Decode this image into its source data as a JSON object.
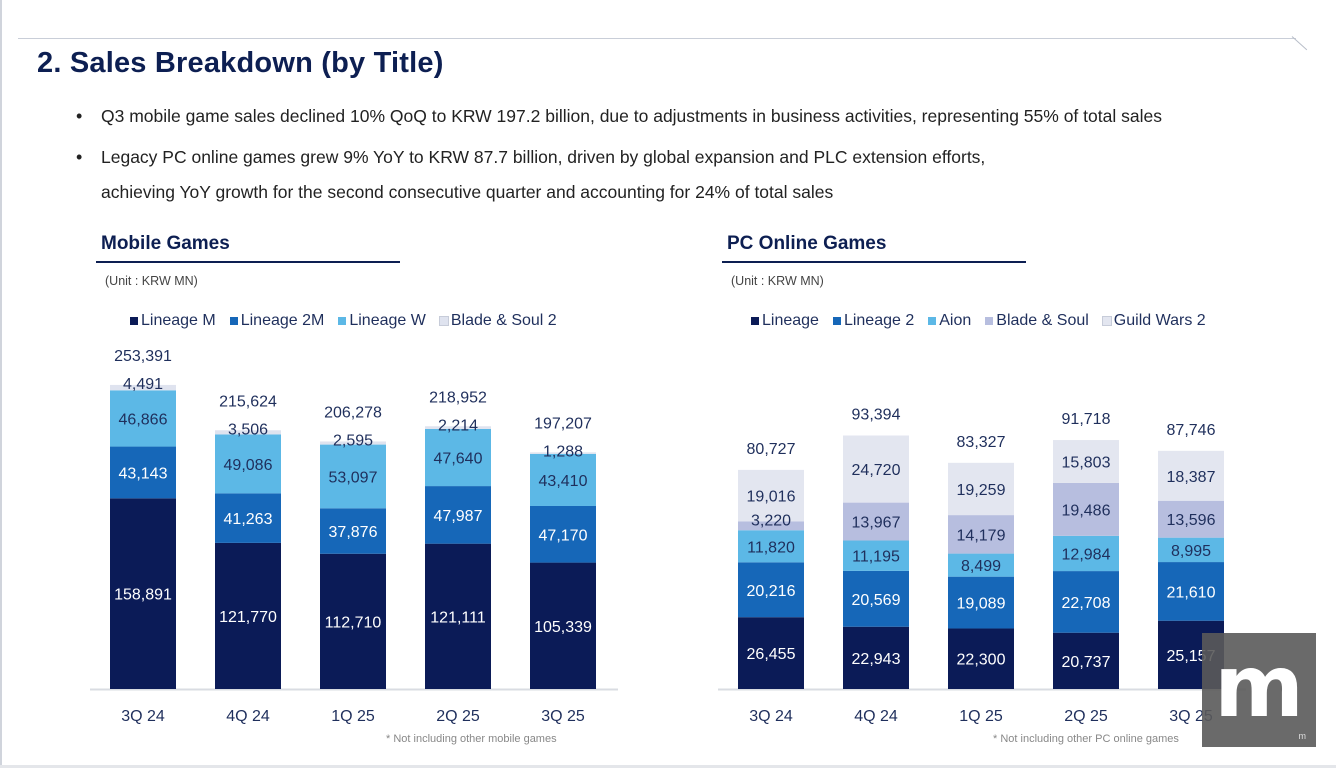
{
  "title": "2. Sales Breakdown (by Title)",
  "bullets": [
    "Q3 mobile game sales declined 10% QoQ to KRW 197.2 billion, due to adjustments in business activities, representing 55% of total sales",
    "Legacy PC online games grew 9% YoY to KRW 87.7 billion, driven by global expansion and PLC extension efforts,",
    "achieving YoY growth for the second consecutive quarter and accounting for 24% of total sales"
  ],
  "bullet_marker": "•",
  "watermark": {
    "letter": "m",
    "small": "m"
  },
  "chart_data": [
    {
      "type": "bar",
      "stacked": true,
      "title": "Mobile Games",
      "unit": "(Unit : KRW MN)",
      "categories": [
        "3Q 24",
        "4Q 24",
        "1Q 25",
        "2Q 25",
        "3Q 25"
      ],
      "series": [
        {
          "name": "Lineage M",
          "color": "#0b1b57",
          "values": [
            158891,
            121770,
            112710,
            121111,
            105339
          ]
        },
        {
          "name": "Lineage 2M",
          "color": "#1667b8",
          "values": [
            43143,
            41263,
            37876,
            47987,
            47170
          ]
        },
        {
          "name": "Lineage W",
          "color": "#5cb8e6",
          "values": [
            46866,
            49086,
            53097,
            47640,
            43410
          ]
        },
        {
          "name": "Blade & Soul 2",
          "color": "#dfe3ef",
          "values": [
            4491,
            3506,
            2595,
            2214,
            1288
          ]
        }
      ],
      "totals": [
        253391,
        215624,
        206278,
        218952,
        197207
      ],
      "ylim": [
        0,
        260000
      ],
      "grid": false,
      "legend": "top",
      "footnote": "* Not including other mobile games"
    },
    {
      "type": "bar",
      "stacked": true,
      "title": "PC Online Games",
      "unit": "(Unit : KRW MN)",
      "categories": [
        "3Q 24",
        "4Q 24",
        "1Q 25",
        "2Q 25",
        "3Q 25"
      ],
      "series": [
        {
          "name": "Lineage",
          "color": "#0b1b57",
          "values": [
            26455,
            22943,
            22300,
            20737,
            25157
          ]
        },
        {
          "name": "Lineage 2",
          "color": "#1667b8",
          "values": [
            20216,
            20569,
            19089,
            22708,
            21610
          ]
        },
        {
          "name": "Aion",
          "color": "#5cb8e6",
          "values": [
            11820,
            11195,
            8499,
            12984,
            8995
          ]
        },
        {
          "name": "Blade & Soul",
          "color": "#b7bedf",
          "values": [
            3220,
            13967,
            14179,
            19486,
            13596
          ]
        },
        {
          "name": "Guild Wars 2",
          "color": "#e3e6f0",
          "values": [
            19016,
            24720,
            19259,
            15803,
            18387
          ]
        }
      ],
      "totals": [
        80727,
        93394,
        83327,
        91718,
        87746
      ],
      "ylim": [
        0,
        105000
      ],
      "grid": false,
      "legend": "top",
      "footnote": "* Not including other PC online games"
    }
  ]
}
